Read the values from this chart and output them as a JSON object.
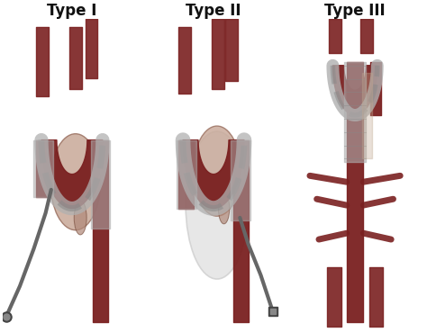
{
  "labels": [
    "Type I",
    "Type II",
    "Type III"
  ],
  "bg_color": "#ffffff",
  "label_fontsize": 12,
  "label_color": "#111111",
  "fig_width": 4.74,
  "fig_height": 3.69,
  "dpi": 100,
  "aorta_color": "#7a2020",
  "stent_color": "#b0b0b0",
  "stent_dark": "#888888",
  "aneurysm_color": "#c8a898",
  "aneurysm_edge": "#9a7060",
  "catheter_color": "#666666",
  "peri_color": "#e0e0e0",
  "tissue_color": "#d0b0a0"
}
